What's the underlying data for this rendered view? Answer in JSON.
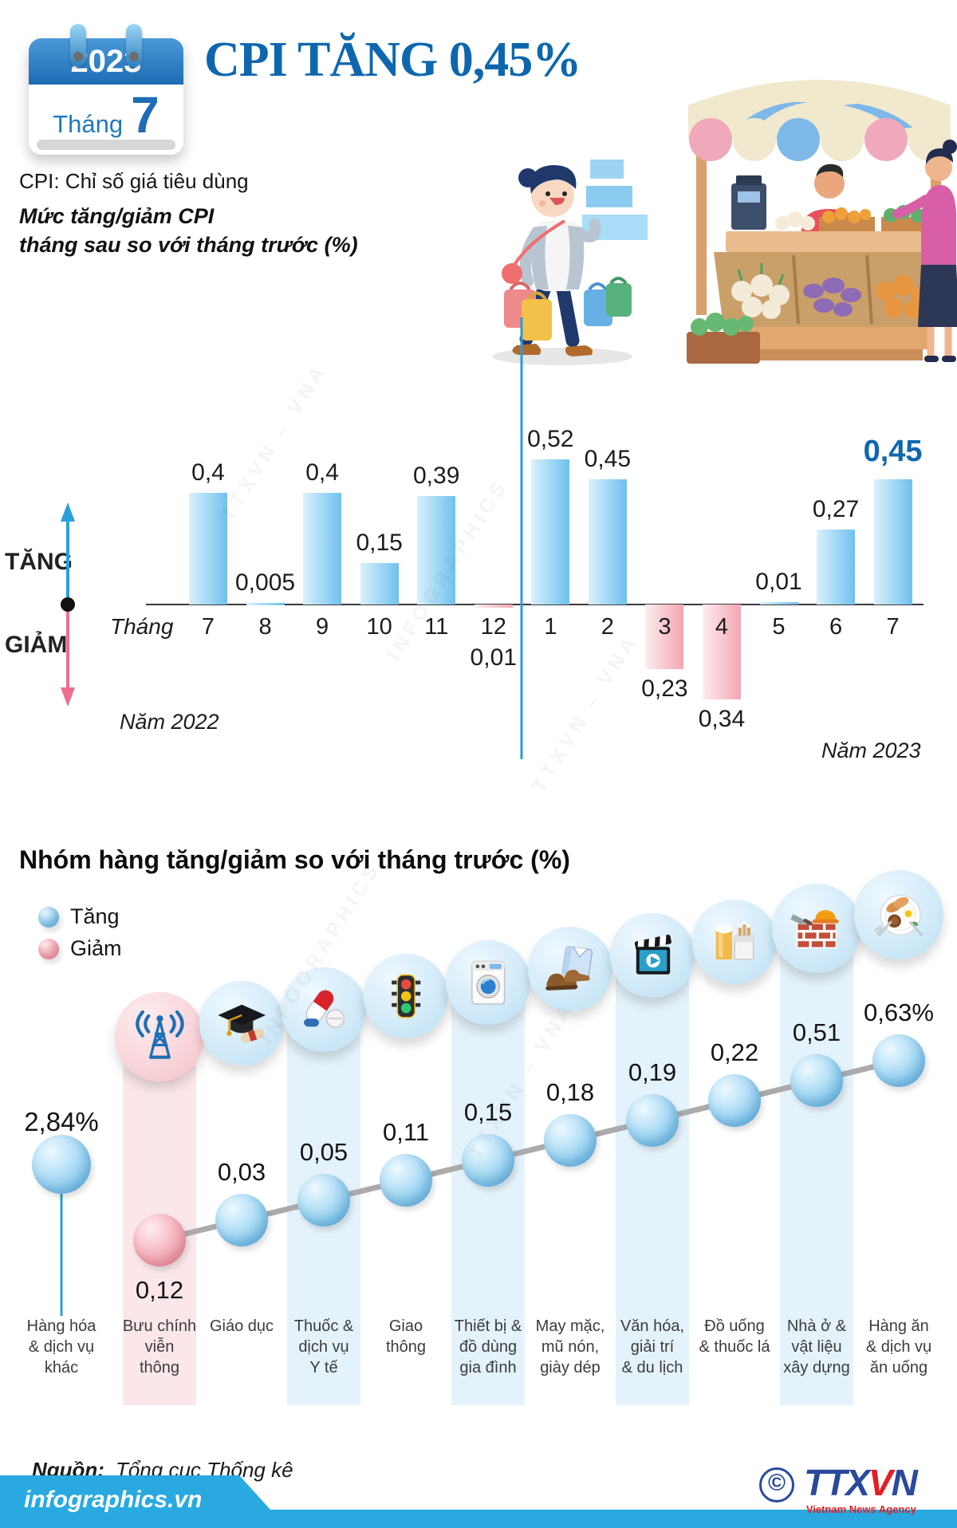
{
  "header": {
    "calendar": {
      "year": "2023",
      "month_label": "Tháng",
      "month_number": "7"
    },
    "title": "CPI TĂNG 0,45%",
    "subtitle": "CPI: Chỉ số giá tiêu dùng",
    "note_line1": "Mức tăng/giảm CPI",
    "note_line2": "tháng sau so với tháng trước (%)"
  },
  "chart_data": [
    {
      "type": "bar",
      "title": "Mức tăng/giảm CPI tháng sau so với tháng trước (%)",
      "axis_prefix": "Tháng",
      "categories": [
        "7",
        "8",
        "9",
        "10",
        "11",
        "12",
        "1",
        "2",
        "3",
        "4",
        "5",
        "6",
        "7"
      ],
      "values": [
        0.4,
        0.005,
        0.4,
        0.15,
        0.39,
        -0.01,
        0.52,
        0.45,
        -0.23,
        -0.34,
        0.01,
        0.27,
        0.45
      ],
      "value_labels": [
        "0,4",
        "0,005",
        "0,4",
        "0,15",
        "0,39",
        "0,01",
        "0,52",
        "0,45",
        "0,23",
        "0,34",
        "0,01",
        "0,27",
        "0,45"
      ],
      "group_labels": {
        "left": "Năm 2022",
        "right": "Năm 2023"
      },
      "legend": {
        "up": "TĂNG",
        "down": "GIẢM"
      },
      "highlight_index": 12,
      "ylim": [
        -0.4,
        0.6
      ],
      "colors": {
        "up": "#6fc0ee",
        "down": "#f3a6b3",
        "divider": "#2b9cd8",
        "highlight_label": "#0e67ae"
      }
    },
    {
      "type": "scatter",
      "title": "Nhóm hàng tăng/giảm so với tháng trước (%)",
      "legend": [
        {
          "label": "Tăng",
          "color": "#7cc3ea"
        },
        {
          "label": "Giảm",
          "color": "#ee97a6"
        }
      ],
      "items": [
        {
          "label": "Hàng hóa & dịch vụ khác",
          "label_lines": [
            "Hàng hóa",
            "& dịch vụ",
            "khác"
          ],
          "value": 2.84,
          "display": "2,84%",
          "direction": "up",
          "icon": null
        },
        {
          "label": "Bưu chính viễn thông",
          "label_lines": [
            "Bưu chính",
            "viễn",
            "thông"
          ],
          "value": -0.12,
          "display": "0,12",
          "direction": "down",
          "icon": "antenna"
        },
        {
          "label": "Giáo dục",
          "label_lines": [
            "Giáo dục"
          ],
          "value": 0.03,
          "display": "0,03",
          "direction": "up",
          "icon": "graduation-cap"
        },
        {
          "label": "Thuốc & dịch vụ Y tế",
          "label_lines": [
            "Thuốc &",
            "dịch vụ",
            "Y tế"
          ],
          "value": 0.05,
          "display": "0,05",
          "direction": "up",
          "icon": "medicine"
        },
        {
          "label": "Giao thông",
          "label_lines": [
            "Giao",
            "thông"
          ],
          "value": 0.11,
          "display": "0,11",
          "direction": "up",
          "icon": "traffic-light"
        },
        {
          "label": "Thiết bị & đồ dùng gia đình",
          "label_lines": [
            "Thiết bị &",
            "đồ dùng",
            "gia đình"
          ],
          "value": 0.15,
          "display": "0,15",
          "direction": "up",
          "icon": "washing-machine"
        },
        {
          "label": "May mặc, mũ nón, giày dép",
          "label_lines": [
            "May mặc,",
            "mũ nón,",
            "giày dép"
          ],
          "value": 0.18,
          "display": "0,18",
          "direction": "up",
          "icon": "clothing"
        },
        {
          "label": "Văn hóa, giải trí & du lịch",
          "label_lines": [
            "Văn hóa,",
            "giải trí",
            "& du lịch"
          ],
          "value": 0.19,
          "display": "0,19",
          "direction": "up",
          "icon": "entertainment"
        },
        {
          "label": "Đồ uống & thuốc lá",
          "label_lines": [
            "Đồ uống",
            "& thuốc lá"
          ],
          "value": 0.22,
          "display": "0,22",
          "direction": "up",
          "icon": "beverage-tobacco"
        },
        {
          "label": "Nhà ở & vật liệu xây dựng",
          "label_lines": [
            "Nhà ở &",
            "vật liệu",
            "xây dựng"
          ],
          "value": 0.51,
          "display": "0,51",
          "direction": "up",
          "icon": "construction"
        },
        {
          "label": "Hàng ăn & dịch vụ ăn uống",
          "label_lines": [
            "Hàng ăn",
            "& dịch vụ",
            "ăn uống"
          ],
          "value": 0.63,
          "display": "0,63%",
          "direction": "up",
          "icon": "food"
        }
      ],
      "stripe_colors": {
        "pink": "#fbe7ea",
        "blue": "#e4f2fb"
      }
    }
  ],
  "footer": {
    "source_label": "Nguồn:",
    "source_value": "Tổng cục Thống kê",
    "brand": "infographics.vn",
    "copyright_symbol": "©",
    "agency_prefix": "TTX",
    "agency_v": "V",
    "agency_suffix": "N",
    "agency_tagline": "Vietnam News Agency"
  },
  "watermarks": [
    "TTXVN – VNA",
    "INFOGRAPHICS"
  ]
}
